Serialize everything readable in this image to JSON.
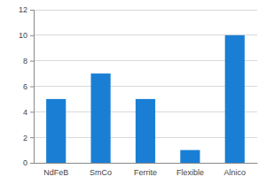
{
  "chart_data": {
    "type": "bar",
    "categories": [
      "NdFeB",
      "SmCo",
      "Ferrite",
      "Flexible",
      "Alnico"
    ],
    "values": [
      5,
      7,
      5,
      1,
      10
    ],
    "color": "#1a7fd4",
    "ylim": [
      0,
      12
    ],
    "yticks": [
      0,
      2,
      4,
      6,
      8,
      10,
      12
    ],
    "grid": true
  }
}
